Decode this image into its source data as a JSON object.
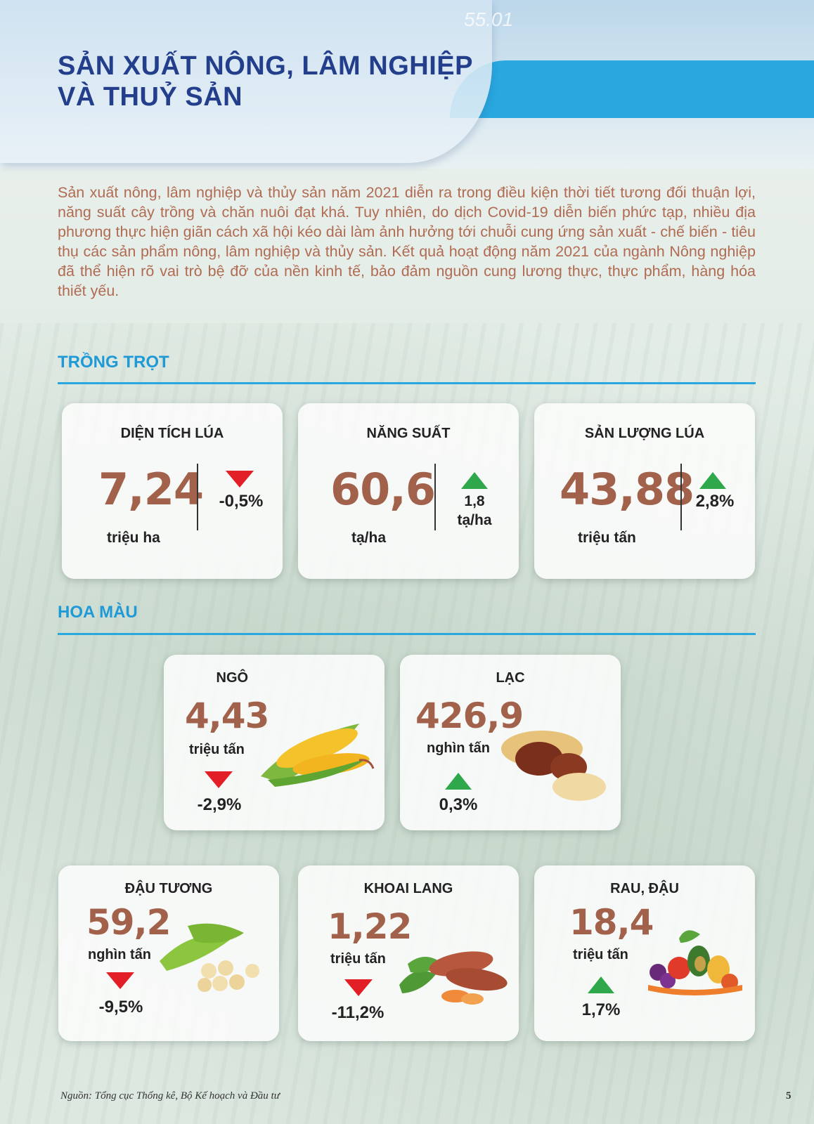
{
  "header": {
    "decor_number": "55.01",
    "title_line1": "SẢN XUẤT NÔNG, LÂM NGHIỆP",
    "title_line2": "VÀ THUỶ SẢN"
  },
  "intro": "Sản xuất nông, lâm nghiệp và thủy sản năm 2021 diễn ra trong điều kiện thời tiết tương đối thuận lợi, năng suất cây trồng và chăn nuôi đạt khá. Tuy nhiên, do dịch Covid-19 diễn biến phức tạp, nhiều địa phương thực hiện giãn cách xã hội kéo dài làm ảnh hưởng tới chuỗi cung ứng sản xuất - chế biến - tiêu thụ các sản phẩm nông, lâm nghiệp và thủy sản. Kết quả hoạt động năm 2021 của ngành Nông nghiệp đã thể hiện rõ vai trò bệ đỡ của nền kinh tế, bảo đảm nguồn cung lương thực, thực phẩm, hàng hóa thiết yếu.",
  "sections": {
    "trong_trot": "TRỒNG TRỌT",
    "hoa_mau": "HOA MÀU"
  },
  "rice_cards": [
    {
      "title": "DIỆN TÍCH LÚA",
      "value": "7,24",
      "unit": "triệu ha",
      "change": "-0,5%",
      "direction": "down"
    },
    {
      "title": "NĂNG SUẤT",
      "value": "60,6",
      "unit": "tạ/ha",
      "change_line1": "1,8",
      "change_line2": "tạ/ha",
      "direction": "up"
    },
    {
      "title": "SẢN LƯỢNG LÚA",
      "value": "43,88",
      "unit": "triệu tấn",
      "change": "2,8%",
      "direction": "up"
    }
  ],
  "crop_cards": [
    {
      "title": "NGÔ",
      "value": "4,43",
      "unit": "triệu tấn",
      "change": "-2,9%",
      "direction": "down",
      "icon": "corn-icon"
    },
    {
      "title": "LẠC",
      "value": "426,9",
      "unit": "nghìn tấn",
      "change": "0,3%",
      "direction": "up",
      "icon": "peanut-icon"
    },
    {
      "title": "ĐẬU TƯƠNG",
      "value": "59,2",
      "unit": "nghìn tấn",
      "change": "-9,5%",
      "direction": "down",
      "icon": "soybean-icon"
    },
    {
      "title": "KHOAI LANG",
      "value": "1,22",
      "unit": "triệu tấn",
      "change": "-11,2%",
      "direction": "down",
      "icon": "sweet-potato-icon"
    },
    {
      "title": "RAU, ĐẬU",
      "value": "18,4",
      "unit": "triệu tấn",
      "change": "1,7%",
      "direction": "up",
      "icon": "vegetables-icon"
    }
  ],
  "colors": {
    "title_blue": "#233f8c",
    "accent_blue": "#29a8e0",
    "number_brown": "#a2614b",
    "up_green": "#2ea84a",
    "down_red": "#e21e26",
    "intro_text": "#b06b52"
  },
  "footer": {
    "source": "Nguồn: Tổng cục Thống kê, Bộ Kế hoạch và Đầu tư",
    "page_number": "5"
  }
}
